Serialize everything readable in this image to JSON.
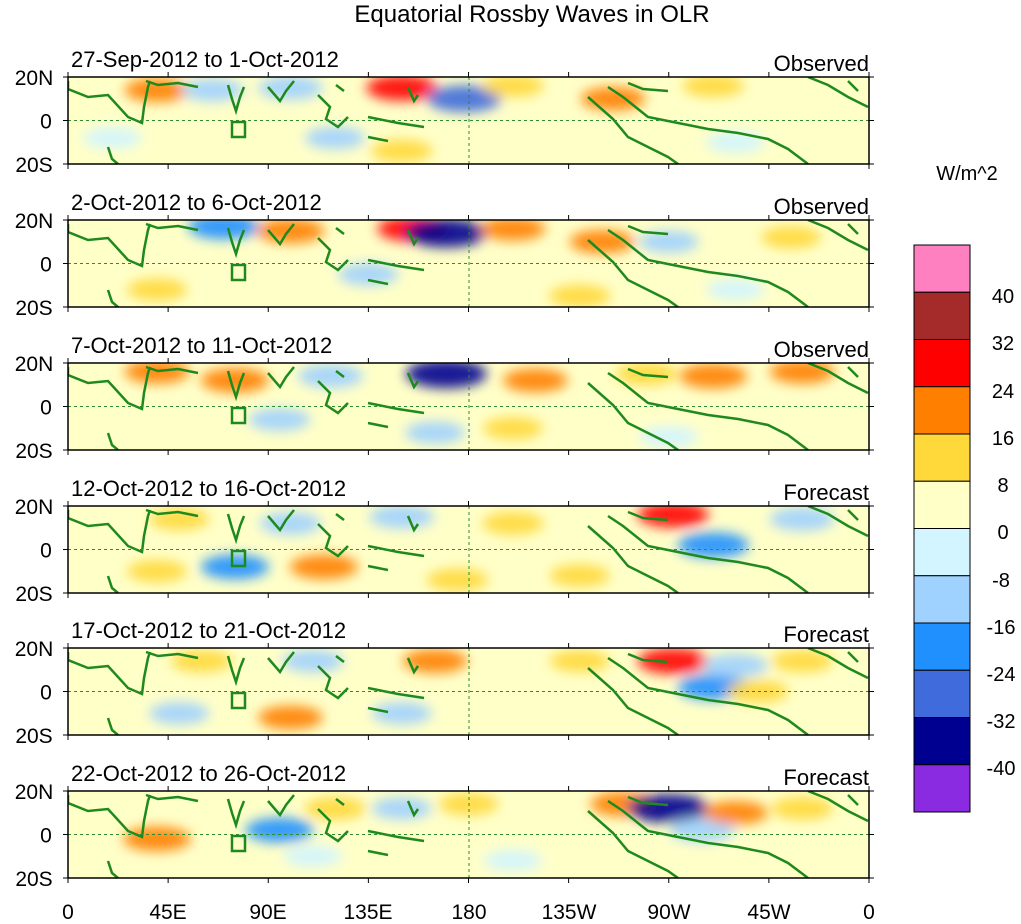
{
  "title": "Equatorial Rossby Waves in OLR",
  "colorbar": {
    "unit": "W/m^2",
    "tick_labels": [
      "40",
      "32",
      "24",
      "16",
      "8",
      "0",
      "-8",
      "-16",
      "-24",
      "-32",
      "-40"
    ],
    "colors": [
      "#ff80c0",
      "#a52a2a",
      "#ff0000",
      "#ff7f00",
      "#ffd83a",
      "#ffffc8",
      "#d2f5ff",
      "#a0d2ff",
      "#2090ff",
      "#3f6bdc",
      "#000090",
      "#8a2be2"
    ]
  },
  "axes": {
    "lat_labels": [
      "20N",
      "0",
      "20S"
    ],
    "lon_labels": [
      "0",
      "45E",
      "90E",
      "135E",
      "180",
      "135W",
      "90W",
      "45W",
      "0"
    ]
  },
  "panels": [
    {
      "date_range": "27-Sep-2012 to 1-Oct-2012",
      "kind": "Observed"
    },
    {
      "date_range": "2-Oct-2012 to 6-Oct-2012",
      "kind": "Observed"
    },
    {
      "date_range": "7-Oct-2012 to 11-Oct-2012",
      "kind": "Observed"
    },
    {
      "date_range": "12-Oct-2012 to 16-Oct-2012",
      "kind": "Forecast"
    },
    {
      "date_range": "17-Oct-2012 to 21-Oct-2012",
      "kind": "Forecast"
    },
    {
      "date_range": "22-Oct-2012 to 26-Oct-2012",
      "kind": "Forecast"
    }
  ],
  "map_colors": {
    "coast": "#1e8a1e",
    "equator_line": "#2e8b2e",
    "background": "#ffffc8",
    "frame": "#000000"
  },
  "anomaly_blobs": [
    [
      {
        "lon": 40,
        "lat": 14,
        "value": 16
      },
      {
        "lon": 65,
        "lat": 14,
        "value": -12
      },
      {
        "lon": 100,
        "lat": 15,
        "value": -16
      },
      {
        "lon": 150,
        "lat": 15,
        "value": 24
      },
      {
        "lon": 178,
        "lat": 10,
        "value": -28
      },
      {
        "lon": 200,
        "lat": 16,
        "value": 12
      },
      {
        "lon": 245,
        "lat": 10,
        "value": 16
      },
      {
        "lon": 290,
        "lat": 16,
        "value": 12
      },
      {
        "lon": 120,
        "lat": -8,
        "value": -10
      },
      {
        "lon": 150,
        "lat": -14,
        "value": 12
      },
      {
        "lon": 300,
        "lat": -10,
        "value": -8
      },
      {
        "lon": 20,
        "lat": -8,
        "value": -8
      }
    ],
    [
      {
        "lon": 70,
        "lat": 17,
        "value": -24
      },
      {
        "lon": 100,
        "lat": 15,
        "value": 20
      },
      {
        "lon": 155,
        "lat": 16,
        "value": 24
      },
      {
        "lon": 170,
        "lat": 14,
        "value": -36
      },
      {
        "lon": 200,
        "lat": 16,
        "value": 16
      },
      {
        "lon": 240,
        "lat": 10,
        "value": 16
      },
      {
        "lon": 270,
        "lat": 10,
        "value": -10
      },
      {
        "lon": 325,
        "lat": 12,
        "value": 10
      },
      {
        "lon": 135,
        "lat": -5,
        "value": -10
      },
      {
        "lon": 230,
        "lat": -15,
        "value": 12
      },
      {
        "lon": 300,
        "lat": -12,
        "value": -8
      },
      {
        "lon": 40,
        "lat": -12,
        "value": 10
      }
    ],
    [
      {
        "lon": 40,
        "lat": 16,
        "value": 16
      },
      {
        "lon": 75,
        "lat": 12,
        "value": 20
      },
      {
        "lon": 118,
        "lat": 14,
        "value": -16
      },
      {
        "lon": 170,
        "lat": 15,
        "value": -36
      },
      {
        "lon": 210,
        "lat": 12,
        "value": 16
      },
      {
        "lon": 260,
        "lat": 15,
        "value": 12
      },
      {
        "lon": 290,
        "lat": 14,
        "value": 20
      },
      {
        "lon": 330,
        "lat": 16,
        "value": 16
      },
      {
        "lon": 95,
        "lat": -6,
        "value": -12
      },
      {
        "lon": 165,
        "lat": -12,
        "value": -10
      },
      {
        "lon": 200,
        "lat": -10,
        "value": 10
      },
      {
        "lon": 270,
        "lat": -14,
        "value": -8
      }
    ],
    [
      {
        "lon": 50,
        "lat": 14,
        "value": 10
      },
      {
        "lon": 100,
        "lat": 12,
        "value": -12
      },
      {
        "lon": 150,
        "lat": 15,
        "value": -16
      },
      {
        "lon": 200,
        "lat": 12,
        "value": 12
      },
      {
        "lon": 272,
        "lat": 16,
        "value": 24
      },
      {
        "lon": 290,
        "lat": 2,
        "value": -24
      },
      {
        "lon": 330,
        "lat": 14,
        "value": -16
      },
      {
        "lon": 75,
        "lat": -8,
        "value": -20
      },
      {
        "lon": 115,
        "lat": -8,
        "value": 20
      },
      {
        "lon": 175,
        "lat": -14,
        "value": 12
      },
      {
        "lon": 40,
        "lat": -10,
        "value": 10
      },
      {
        "lon": 230,
        "lat": -12,
        "value": 10
      }
    ],
    [
      {
        "lon": 60,
        "lat": 14,
        "value": 12
      },
      {
        "lon": 110,
        "lat": 14,
        "value": -12
      },
      {
        "lon": 165,
        "lat": 14,
        "value": 16
      },
      {
        "lon": 230,
        "lat": 14,
        "value": 10
      },
      {
        "lon": 272,
        "lat": 14,
        "value": 24
      },
      {
        "lon": 290,
        "lat": 2,
        "value": -24
      },
      {
        "lon": 300,
        "lat": 12,
        "value": -16
      },
      {
        "lon": 100,
        "lat": -12,
        "value": 16
      },
      {
        "lon": 150,
        "lat": -10,
        "value": -10
      },
      {
        "lon": 50,
        "lat": -10,
        "value": -10
      },
      {
        "lon": 330,
        "lat": 14,
        "value": 12
      },
      {
        "lon": 310,
        "lat": 0,
        "value": 12
      }
    ],
    [
      {
        "lon": 40,
        "lat": -2,
        "value": 20
      },
      {
        "lon": 95,
        "lat": 2,
        "value": -20
      },
      {
        "lon": 120,
        "lat": 12,
        "value": 12
      },
      {
        "lon": 150,
        "lat": 12,
        "value": -10
      },
      {
        "lon": 180,
        "lat": 14,
        "value": 10
      },
      {
        "lon": 250,
        "lat": 14,
        "value": 20
      },
      {
        "lon": 270,
        "lat": 12,
        "value": -36
      },
      {
        "lon": 285,
        "lat": 2,
        "value": -16
      },
      {
        "lon": 300,
        "lat": 10,
        "value": 16
      },
      {
        "lon": 110,
        "lat": -10,
        "value": -8
      },
      {
        "lon": 200,
        "lat": -12,
        "value": -8
      },
      {
        "lon": 330,
        "lat": 12,
        "value": 12
      }
    ]
  ]
}
